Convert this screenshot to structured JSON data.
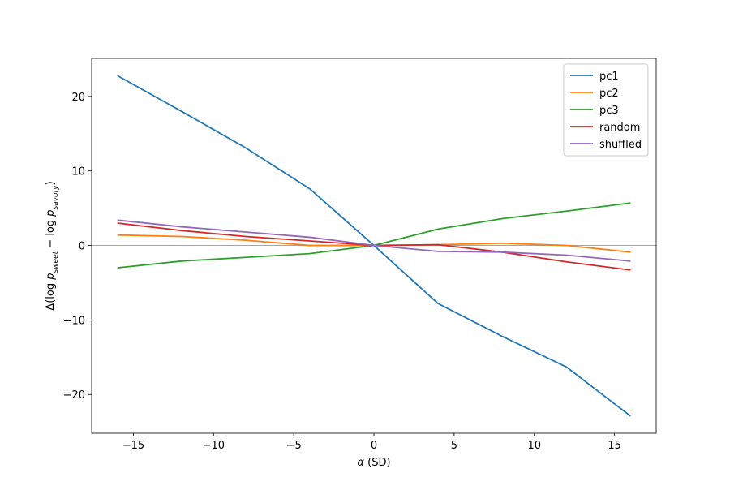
{
  "chart_data": {
    "type": "line",
    "xlabel": [
      "α",
      " (SD)"
    ],
    "ylabel": [
      "Δ(log ",
      "p",
      "sweet",
      " − log ",
      "p",
      "savory",
      ")"
    ],
    "x": [
      -16,
      -12,
      -8,
      -4,
      0,
      4,
      8,
      12,
      16
    ],
    "series": [
      {
        "name": "pc1",
        "color": "#1f77b4",
        "values": [
          22.8,
          18.0,
          13.1,
          7.6,
          0,
          -7.8,
          -12.2,
          -16.3,
          -22.9
        ]
      },
      {
        "name": "pc2",
        "color": "#ff7f0e",
        "values": [
          1.4,
          1.2,
          0.7,
          0.0,
          0,
          0.1,
          0.3,
          0.0,
          -0.9
        ]
      },
      {
        "name": "pc3",
        "color": "#2ca02c",
        "values": [
          -3.0,
          -2.1,
          -1.6,
          -1.1,
          0,
          2.2,
          3.6,
          4.6,
          5.7
        ]
      },
      {
        "name": "random",
        "color": "#d62728",
        "values": [
          3.0,
          2.0,
          1.2,
          0.6,
          0,
          0.1,
          -0.9,
          -2.2,
          -3.3
        ]
      },
      {
        "name": "shuffled",
        "color": "#9467bd",
        "values": [
          3.4,
          2.5,
          1.8,
          1.1,
          0,
          -0.8,
          -0.9,
          -1.3,
          -2.1
        ]
      }
    ],
    "xlim": [
      -17.6,
      17.6
    ],
    "ylim": [
      -25.2,
      25.1
    ],
    "xticks": [
      {
        "value": -15,
        "label": "−15"
      },
      {
        "value": -10,
        "label": "−10"
      },
      {
        "value": -5,
        "label": "−5"
      },
      0,
      5,
      10,
      15
    ],
    "yticks": [
      {
        "value": -20,
        "label": "−20"
      },
      {
        "value": -10,
        "label": "−10"
      },
      0,
      10,
      20
    ],
    "axhline": 0,
    "legend": "upper right"
  }
}
